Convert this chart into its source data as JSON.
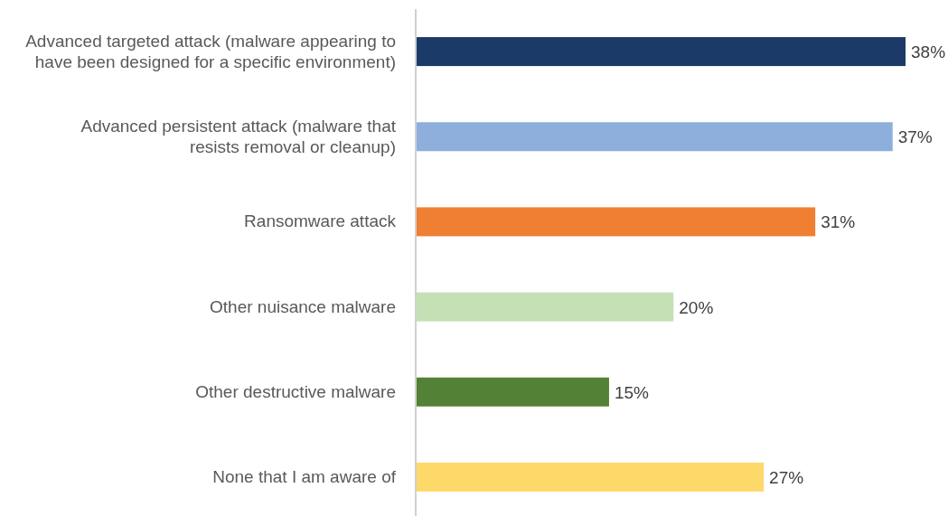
{
  "chart_data": {
    "type": "bar",
    "orientation": "horizontal",
    "categories": [
      "Advanced targeted attack (malware appearing to have been designed for a specific environment)",
      "Advanced persistent attack (malware that resists removal or cleanup)",
      "Ransomware attack",
      "Other nuisance malware",
      "Other destructive malware",
      "None that I am aware of"
    ],
    "values": [
      38,
      37,
      31,
      20,
      15,
      27
    ],
    "colors": [
      "#1b3a67",
      "#8eaedb",
      "#ef7f32",
      "#c5e0b4",
      "#538135",
      "#fdd969"
    ],
    "value_labels": [
      "38%",
      "37%",
      "31%",
      "20%",
      "15%",
      "27%"
    ]
  }
}
